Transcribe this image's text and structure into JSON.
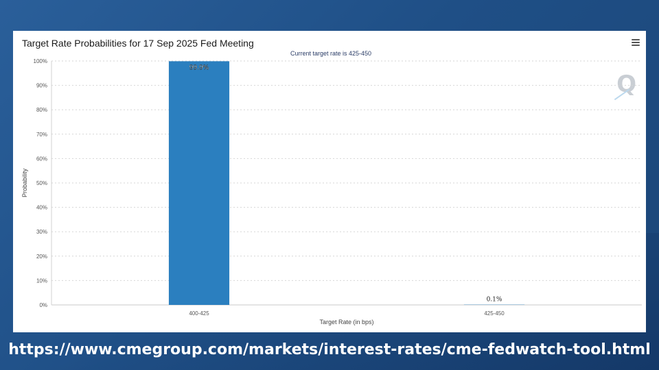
{
  "chart_data": {
    "type": "bar",
    "title": "Target Rate Probabilities for 17 Sep 2025 Fed Meeting",
    "subtitle": "Current target rate is 425-450",
    "categories": [
      "400-425",
      "425-450"
    ],
    "values": [
      99.9,
      0.1
    ],
    "data_labels": [
      "99.9%",
      "0.1%"
    ],
    "xlabel": "Target Rate (in bps)",
    "ylabel": "Probability",
    "ylim": [
      0,
      100
    ],
    "yticks": [
      "0%",
      "10%",
      "20%",
      "30%",
      "40%",
      "50%",
      "60%",
      "70%",
      "80%",
      "90%",
      "100%"
    ],
    "grid": true,
    "bar_color": "#2b7fbf"
  },
  "watermark": "Q",
  "footer": {
    "url": "https://www.cmegroup.com/markets/interest-rates/cme-fedwatch-tool.html"
  }
}
